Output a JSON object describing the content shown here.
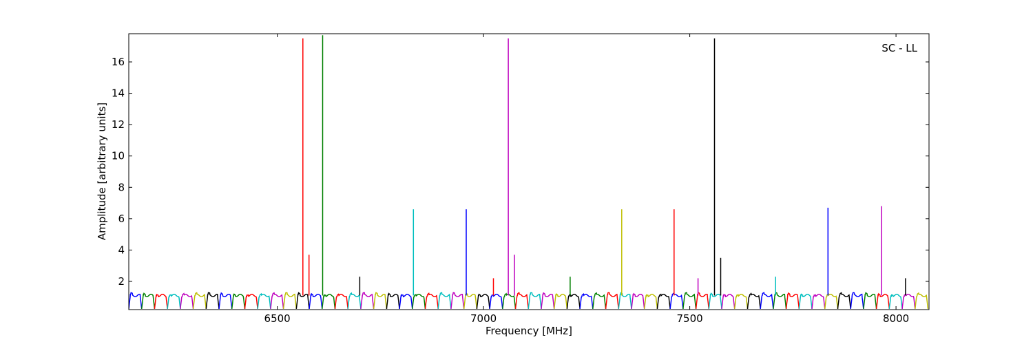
{
  "chart_data": {
    "type": "line",
    "title": "",
    "xlabel": "Frequency [MHz]",
    "ylabel": "Amplitude [arbitrary units]",
    "annotation": "SC - LL",
    "xlim": [
      6140,
      8080
    ],
    "ylim": [
      0.2,
      17.8
    ],
    "xticks": [
      6500,
      7000,
      7500,
      8000
    ],
    "yticks": [
      2,
      4,
      6,
      8,
      10,
      12,
      14,
      16
    ],
    "grid": false,
    "legend": "none",
    "colors": [
      "#0000ff",
      "#008000",
      "#ff0000",
      "#00bfbf",
      "#bf00bf",
      "#bfbf00",
      "#000000"
    ],
    "channel_passbands": {
      "start_mhz": 6140,
      "spacing_mhz": 31.25,
      "count": 62,
      "passband_level": 1.1,
      "floor_level": 0.25
    },
    "spikes": [
      {
        "x": 6562,
        "y": 17.5,
        "color": "#ff0000"
      },
      {
        "x": 6577,
        "y": 3.7,
        "color": "#ff0000"
      },
      {
        "x": 6610,
        "y": 17.7,
        "color": "#008000"
      },
      {
        "x": 6700,
        "y": 2.3,
        "color": "#000000"
      },
      {
        "x": 6830,
        "y": 6.6,
        "color": "#00bfbf"
      },
      {
        "x": 6958,
        "y": 6.6,
        "color": "#0000ff"
      },
      {
        "x": 7024,
        "y": 2.2,
        "color": "#ff0000"
      },
      {
        "x": 7060,
        "y": 17.5,
        "color": "#bf00bf"
      },
      {
        "x": 7075,
        "y": 3.7,
        "color": "#bf00bf"
      },
      {
        "x": 7210,
        "y": 2.3,
        "color": "#008000"
      },
      {
        "x": 7335,
        "y": 6.6,
        "color": "#bfbf00"
      },
      {
        "x": 7462,
        "y": 6.6,
        "color": "#ff0000"
      },
      {
        "x": 7520,
        "y": 2.2,
        "color": "#bf00bf"
      },
      {
        "x": 7560,
        "y": 17.5,
        "color": "#000000"
      },
      {
        "x": 7575,
        "y": 3.5,
        "color": "#000000"
      },
      {
        "x": 7708,
        "y": 2.3,
        "color": "#00bfbf"
      },
      {
        "x": 7835,
        "y": 6.7,
        "color": "#0000ff"
      },
      {
        "x": 7965,
        "y": 6.8,
        "color": "#bf00bf"
      },
      {
        "x": 8023,
        "y": 2.2,
        "color": "#000000"
      }
    ]
  }
}
